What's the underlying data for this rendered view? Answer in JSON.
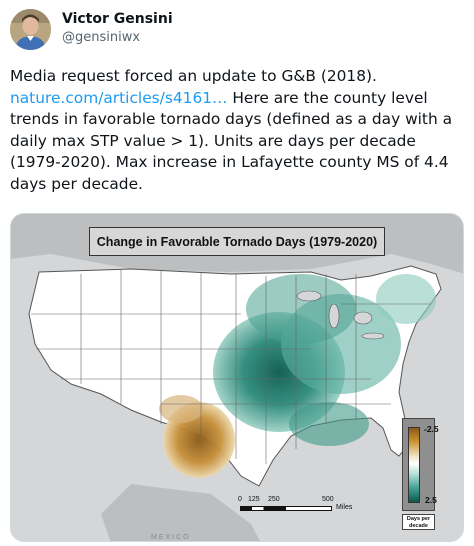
{
  "author": {
    "display_name": "Victor Gensini",
    "handle": "@gensiniwx",
    "avatar_icon": "profile-photo"
  },
  "tweet": {
    "text_before_link": "Media request forced an update to G&B (2018).",
    "link_text": "nature.com/articles/s4161…",
    "text_after_link": " Here are the county level trends in favorable tornado days (defined as a day with a daily max STP value > 1). Units are days per decade (1979-2020). Max increase in Lafayette county MS of 4.4 days per decade."
  },
  "map": {
    "title": "Change in Favorable Tornado Days  (1979-2020)",
    "legend": {
      "max_label": "-2.5",
      "min_label": "2.5",
      "units_label": "Days per decade",
      "colors": {
        "decrease": "#a8701f",
        "neutral": "#ffffff",
        "increase": "#0b5a4d"
      }
    },
    "scale_bar": {
      "ticks": [
        "0",
        "125",
        "250",
        "500"
      ],
      "unit": "Miles"
    },
    "region_label": "MEXICO"
  },
  "colors": {
    "text": "#0f1419",
    "secondary_text": "#536471",
    "link": "#1d9bf0"
  }
}
